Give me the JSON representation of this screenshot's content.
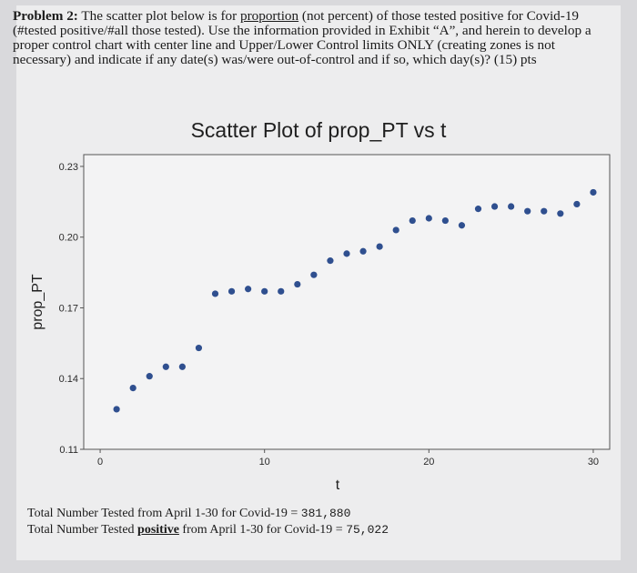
{
  "problem": {
    "label": "Problem 2:",
    "text_part1": " The scatter plot below is for ",
    "emph": "proportion",
    "text_part2": " (not percent) of those tested positive for Covid-19 (#tested positive/#all those tested).  Use the information provided in Exhibit “A”, and herein to develop a proper control chart with center line and Upper/Lower Control limits ONLY (creating zones is not necessary) and indicate if any date(s) was/were out-of-control and if so, which day(s)?  (15) pts"
  },
  "totals": {
    "line1_text": "Total Number Tested from April 1-30 for Covid-19 = ",
    "line1_value": "381,880",
    "line2_prefix": "Total Number Tested ",
    "line2_emph": "positive",
    "line2_suffix": " from April 1-30 for Covid-19 = ",
    "line2_value": "75,022"
  },
  "colors": {
    "point": "#2f4f8f",
    "axis": "#555555"
  },
  "chart_data": {
    "type": "scatter",
    "title": "Scatter Plot of prop_PT vs t",
    "xlabel": "t",
    "ylabel": "prop_PT",
    "xlim": [
      -1,
      31
    ],
    "ylim": [
      0.11,
      0.235
    ],
    "xticks": [
      "0",
      "10",
      "20",
      "30"
    ],
    "xtick_values": [
      0,
      10,
      20,
      30
    ],
    "yticks": [
      "0.11",
      "0.14",
      "0.17",
      "0.20",
      "0.23"
    ],
    "ytick_values": [
      0.11,
      0.14,
      0.17,
      0.2,
      0.23
    ],
    "grid": false,
    "series": [
      {
        "x": [
          1,
          2,
          3,
          4,
          5,
          6,
          7,
          8,
          9,
          10,
          11,
          12,
          13,
          14,
          15,
          16,
          17,
          18,
          19,
          20,
          21,
          22,
          23,
          24,
          25,
          26,
          27,
          28,
          29,
          30
        ],
        "y": [
          0.127,
          0.136,
          0.141,
          0.145,
          0.145,
          0.153,
          0.176,
          0.177,
          0.178,
          0.177,
          0.177,
          0.18,
          0.184,
          0.19,
          0.193,
          0.194,
          0.196,
          0.203,
          0.207,
          0.208,
          0.207,
          0.205,
          0.212,
          0.213,
          0.213,
          0.211,
          0.211,
          0.21,
          0.214,
          0.219
        ]
      }
    ]
  }
}
